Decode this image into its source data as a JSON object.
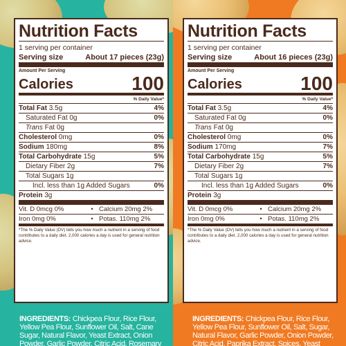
{
  "colors": {
    "left_bg": "#26b3a0",
    "right_bg": "#f07a22",
    "label_ink": "#4a2a1c"
  },
  "left": {
    "title": "Nutrition Facts",
    "servings_per_container": "1 serving per container",
    "serving_size_label": "Serving size",
    "serving_size_value": "About 17 pieces (23g)",
    "amount_per_serving": "Amount Per Serving",
    "calories_label": "Calories",
    "calories_value": "100",
    "daily_value_header": "% Daily Value*",
    "total_fat_label": "Total Fat",
    "total_fat_amount": "3.5g",
    "total_fat_dv": "4%",
    "sat_fat_label": "Saturated Fat 0g",
    "sat_fat_dv": "0%",
    "trans_fat_italic": "Trans",
    "trans_fat_rest": " Fat 0g",
    "cholesterol_label": "Cholesterol",
    "cholesterol_amount": "0mg",
    "cholesterol_dv": "0%",
    "sodium_label": "Sodium",
    "sodium_amount": "180mg",
    "sodium_dv": "8%",
    "carb_label": "Total Carbohydrate",
    "carb_amount": "15g",
    "carb_dv": "5%",
    "fiber_label": "Dietary Fiber 2g",
    "fiber_dv": "7%",
    "sugars_label": "Total Sugars 1g",
    "added_sugars_label": "Incl. less than 1g Added Sugars",
    "added_sugars_dv": "0%",
    "protein_label": "Protein",
    "protein_amount": "3g",
    "vitd": "Vit. D 0mcg 0%",
    "dot1": "•",
    "calcium": "Calcium 20mg 2%",
    "iron": "Iron 0mg 0%",
    "dot2": "•",
    "potassium": "Potas. 110mg 2%",
    "footnote": "*The % Daily Value (DV) tells you how much a nutrient in a serving of food contributes to a daily diet. 2,000 calories a day is used for general nutrition advice.",
    "ingredients_label": "INGREDIENTS:",
    "ingredients_text": " Chickpea Flour, Rice Flour, Yellow Pea Flour, Sunflower Oil, Salt, Cane Sugar, Natural Flavor, Yeast Extract, Onion Powder, Garlic Powder, Citric Acid, Rosemary Extract."
  },
  "right": {
    "title": "Nutrition Facts",
    "servings_per_container": "1 serving per container",
    "serving_size_label": "Serving size",
    "serving_size_value": "About 16 pieces (23g)",
    "amount_per_serving": "Amount Per Serving",
    "calories_label": "Calories",
    "calories_value": "100",
    "daily_value_header": "% Daily Value*",
    "total_fat_label": "Total Fat",
    "total_fat_amount": "3.5g",
    "total_fat_dv": "4%",
    "sat_fat_label": "Saturated Fat 0g",
    "sat_fat_dv": "0%",
    "trans_fat_italic": "Trans",
    "trans_fat_rest": " Fat 0g",
    "cholesterol_label": "Cholesterol",
    "cholesterol_amount": "0mg",
    "cholesterol_dv": "0%",
    "sodium_label": "Sodium",
    "sodium_amount": "170mg",
    "sodium_dv": "7%",
    "carb_label": "Total Carbohydrate",
    "carb_amount": "15g",
    "carb_dv": "5%",
    "fiber_label": "Dietary Fiber 2g",
    "fiber_dv": "7%",
    "sugars_label": "Total Sugars 1g",
    "added_sugars_label": "Incl. less than 1g Added Sugars",
    "added_sugars_dv": "0%",
    "protein_label": "Protein",
    "protein_amount": "3g",
    "vitd": "Vit. D 0mcg 0%",
    "dot1": "•",
    "calcium": "Calcium 20mg 2%",
    "iron": "Iron 0mg 0%",
    "dot2": "•",
    "potassium": "Potas. 110mg 2%",
    "footnote": "*The % Daily Value (DV) tells you how much a nutrient in a serving of food contributes to a daily diet. 2,000 calories a day is used for general nutrition advice.",
    "ingredients_label": "INGREDIENTS:",
    "ingredients_text": " Chickpea Flour, Rice Flour, Yellow Pea Flour, Sunflower Oil, Salt, Sugar, Natural Flavor, Garlic Powder, Onion Powder, Citric Acid, Paprika Extract, Spices, Yeast Extract, Rosemary Extract."
  }
}
